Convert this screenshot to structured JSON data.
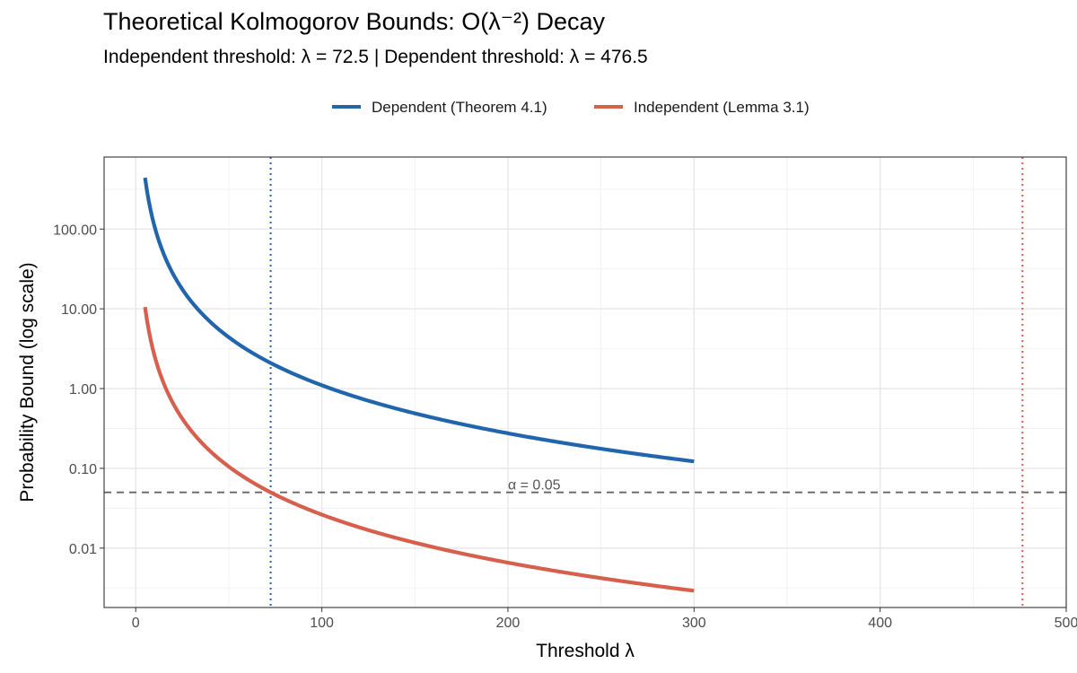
{
  "chart_data": {
    "type": "line",
    "title": "Theoretical Kolmogorov Bounds: O(λ⁻²) Decay",
    "subtitle": "Independent threshold: λ = 72.5  |  Dependent threshold: λ = 476.5",
    "xlabel": "Threshold λ",
    "ylabel": "Probability Bound (log scale)",
    "x_scale": "linear",
    "y_scale": "log10",
    "xlim": [
      -17,
      500
    ],
    "ylim": [
      0.0018,
      800
    ],
    "x_ticks": [
      0,
      100,
      200,
      300,
      400,
      500
    ],
    "x_tick_labels": [
      "0",
      "100",
      "200",
      "300",
      "400",
      "500"
    ],
    "y_ticks": [
      0.01,
      0.1,
      1,
      10,
      100
    ],
    "y_tick_labels": [
      "0.01",
      "0.10",
      "1.00",
      "10.00",
      "100.00"
    ],
    "grid": true,
    "legend_position": "top",
    "series": [
      {
        "name": "Dependent (Theorem 4.1)",
        "color": "#2166ac",
        "formula": "C / λ^2",
        "coefficient": 11000,
        "x_range": [
          5,
          300
        ],
        "values_at": {
          "5": 440,
          "72.5": 2.09,
          "100": 1.1,
          "300": 0.122
        }
      },
      {
        "name": "Independent (Lemma 3.1)",
        "color": "#d6604d",
        "formula": "C / λ^2",
        "coefficient": 262.8,
        "x_range": [
          5,
          300
        ],
        "values_at": {
          "5": 10.5,
          "72.5": 0.05,
          "100": 0.026,
          "300": 0.0029
        }
      }
    ],
    "reference_lines": [
      {
        "orientation": "horizontal",
        "value": 0.05,
        "label": "α = 0.05",
        "color": "#666666",
        "style": "dashed"
      },
      {
        "orientation": "vertical",
        "value": 72.5,
        "color": "#2166ac",
        "style": "dotted",
        "label": "Independent threshold"
      },
      {
        "orientation": "vertical",
        "value": 476.5,
        "color": "#d6604d",
        "style": "dotted",
        "label": "Dependent threshold"
      }
    ]
  }
}
